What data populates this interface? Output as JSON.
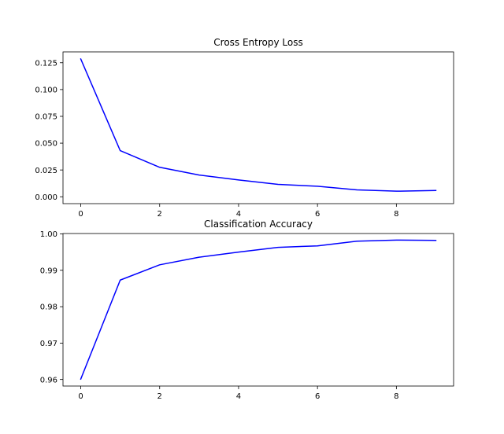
{
  "chart_data": [
    {
      "type": "line",
      "title": "Cross Entropy Loss",
      "xlabel": "",
      "ylabel": "",
      "x": [
        0,
        1,
        2,
        3,
        4,
        5,
        6,
        7,
        8,
        9
      ],
      "series": [
        {
          "color": "#0000ff",
          "values": [
            0.1285,
            0.043,
            0.0275,
            0.0203,
            0.0157,
            0.0116,
            0.0098,
            0.0064,
            0.0052,
            0.0059
          ]
        }
      ],
      "xlim": [
        -0.45,
        9.45
      ],
      "ylim": [
        -0.0064,
        0.1351
      ],
      "xticks": [
        "0",
        "2",
        "4",
        "6",
        "8"
      ],
      "yticks": [
        "0.000",
        "0.025",
        "0.050",
        "0.075",
        "0.100",
        "0.125"
      ],
      "grid": false,
      "legend": "none"
    },
    {
      "type": "line",
      "title": "Classification Accuracy",
      "xlabel": "",
      "ylabel": "",
      "x": [
        0,
        1,
        2,
        3,
        4,
        5,
        6,
        7,
        8,
        9
      ],
      "series": [
        {
          "color": "#0000ff",
          "values": [
            0.9601,
            0.9873,
            0.9915,
            0.9936,
            0.995,
            0.9963,
            0.9967,
            0.998,
            0.9983,
            0.9982
          ]
        }
      ],
      "xlim": [
        -0.45,
        9.45
      ],
      "ylim": [
        0.9582,
        1.0001
      ],
      "xticks": [
        "0",
        "2",
        "4",
        "6",
        "8"
      ],
      "yticks": [
        "0.96",
        "0.97",
        "0.98",
        "0.99",
        "1.00"
      ],
      "grid": false,
      "legend": "none"
    }
  ]
}
